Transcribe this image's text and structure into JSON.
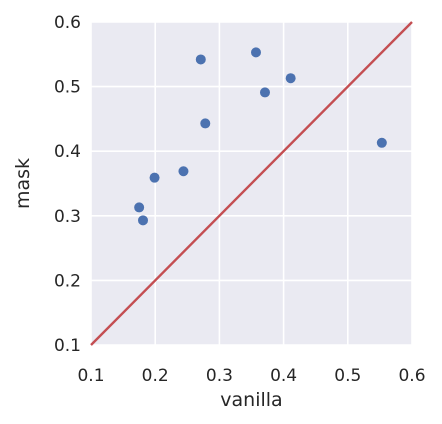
{
  "chart_data": {
    "type": "scatter",
    "title": "",
    "xlabel": "vanilla",
    "ylabel": "mask",
    "xlim": [
      0.1,
      0.6
    ],
    "ylim": [
      0.1,
      0.6
    ],
    "xticks": [
      0.1,
      0.2,
      0.3,
      0.4,
      0.5,
      0.6
    ],
    "yticks": [
      0.1,
      0.2,
      0.3,
      0.4,
      0.5,
      0.6
    ],
    "xtick_labels": [
      "0.1",
      "0.2",
      "0.3",
      "0.4",
      "0.5",
      "0.6"
    ],
    "ytick_labels": [
      "0.1",
      "0.2",
      "0.3",
      "0.4",
      "0.5",
      "0.6"
    ],
    "grid": true,
    "background_color": "#eaeaf2",
    "grid_color": "#ffffff",
    "point_color": "#4c72b0",
    "line_color": "#c44e52",
    "reference_line": {
      "x": [
        0.1,
        0.6
      ],
      "y": [
        0.1,
        0.6
      ]
    },
    "points": [
      {
        "x": 0.175,
        "y": 0.313
      },
      {
        "x": 0.181,
        "y": 0.293
      },
      {
        "x": 0.199,
        "y": 0.359
      },
      {
        "x": 0.244,
        "y": 0.369
      },
      {
        "x": 0.271,
        "y": 0.542
      },
      {
        "x": 0.278,
        "y": 0.443
      },
      {
        "x": 0.357,
        "y": 0.553
      },
      {
        "x": 0.371,
        "y": 0.491
      },
      {
        "x": 0.411,
        "y": 0.513
      },
      {
        "x": 0.553,
        "y": 0.413
      }
    ]
  }
}
